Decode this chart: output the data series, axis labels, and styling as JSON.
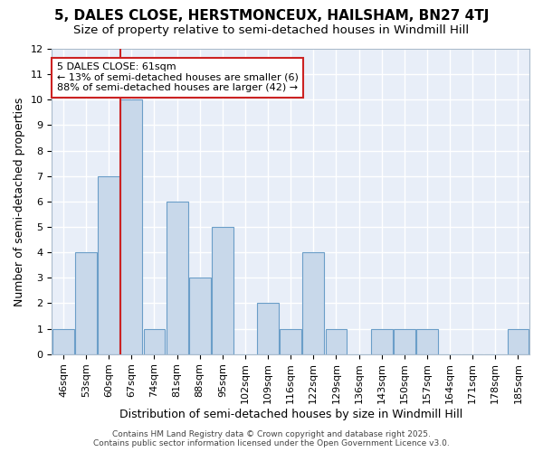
{
  "title1": "5, DALES CLOSE, HERSTMONCEUX, HAILSHAM, BN27 4TJ",
  "title2": "Size of property relative to semi-detached houses in Windmill Hill",
  "xlabel": "Distribution of semi-detached houses by size in Windmill Hill",
  "ylabel": "Number of semi-detached properties",
  "categories": [
    "46sqm",
    "53sqm",
    "60sqm",
    "67sqm",
    "74sqm",
    "81sqm",
    "88sqm",
    "95sqm",
    "102sqm",
    "109sqm",
    "116sqm",
    "122sqm",
    "129sqm",
    "136sqm",
    "143sqm",
    "150sqm",
    "157sqm",
    "164sqm",
    "171sqm",
    "178sqm",
    "185sqm"
  ],
  "values": [
    1,
    4,
    7,
    10,
    1,
    6,
    3,
    5,
    0,
    2,
    1,
    4,
    1,
    0,
    1,
    1,
    1,
    0,
    0,
    0,
    1
  ],
  "highlight_index": 2,
  "bar_color": "#c8d8ea",
  "bar_edge_color": "#6b9ec8",
  "highlight_line_color": "#cc2222",
  "annotation_box_text": "5 DALES CLOSE: 61sqm\n← 13% of semi-detached houses are smaller (6)\n88% of semi-detached houses are larger (42) →",
  "annotation_box_edge_color": "#cc2222",
  "background_color": "#ffffff",
  "plot_bg_color": "#e8eef8",
  "grid_color": "#ffffff",
  "ylim": [
    0,
    12
  ],
  "yticks": [
    0,
    1,
    2,
    3,
    4,
    5,
    6,
    7,
    8,
    9,
    10,
    11,
    12
  ],
  "footer": "Contains HM Land Registry data © Crown copyright and database right 2025.\nContains public sector information licensed under the Open Government Licence v3.0.",
  "title1_fontsize": 11,
  "title2_fontsize": 9.5,
  "xlabel_fontsize": 9,
  "ylabel_fontsize": 9,
  "tick_fontsize": 8,
  "annotation_fontsize": 8
}
